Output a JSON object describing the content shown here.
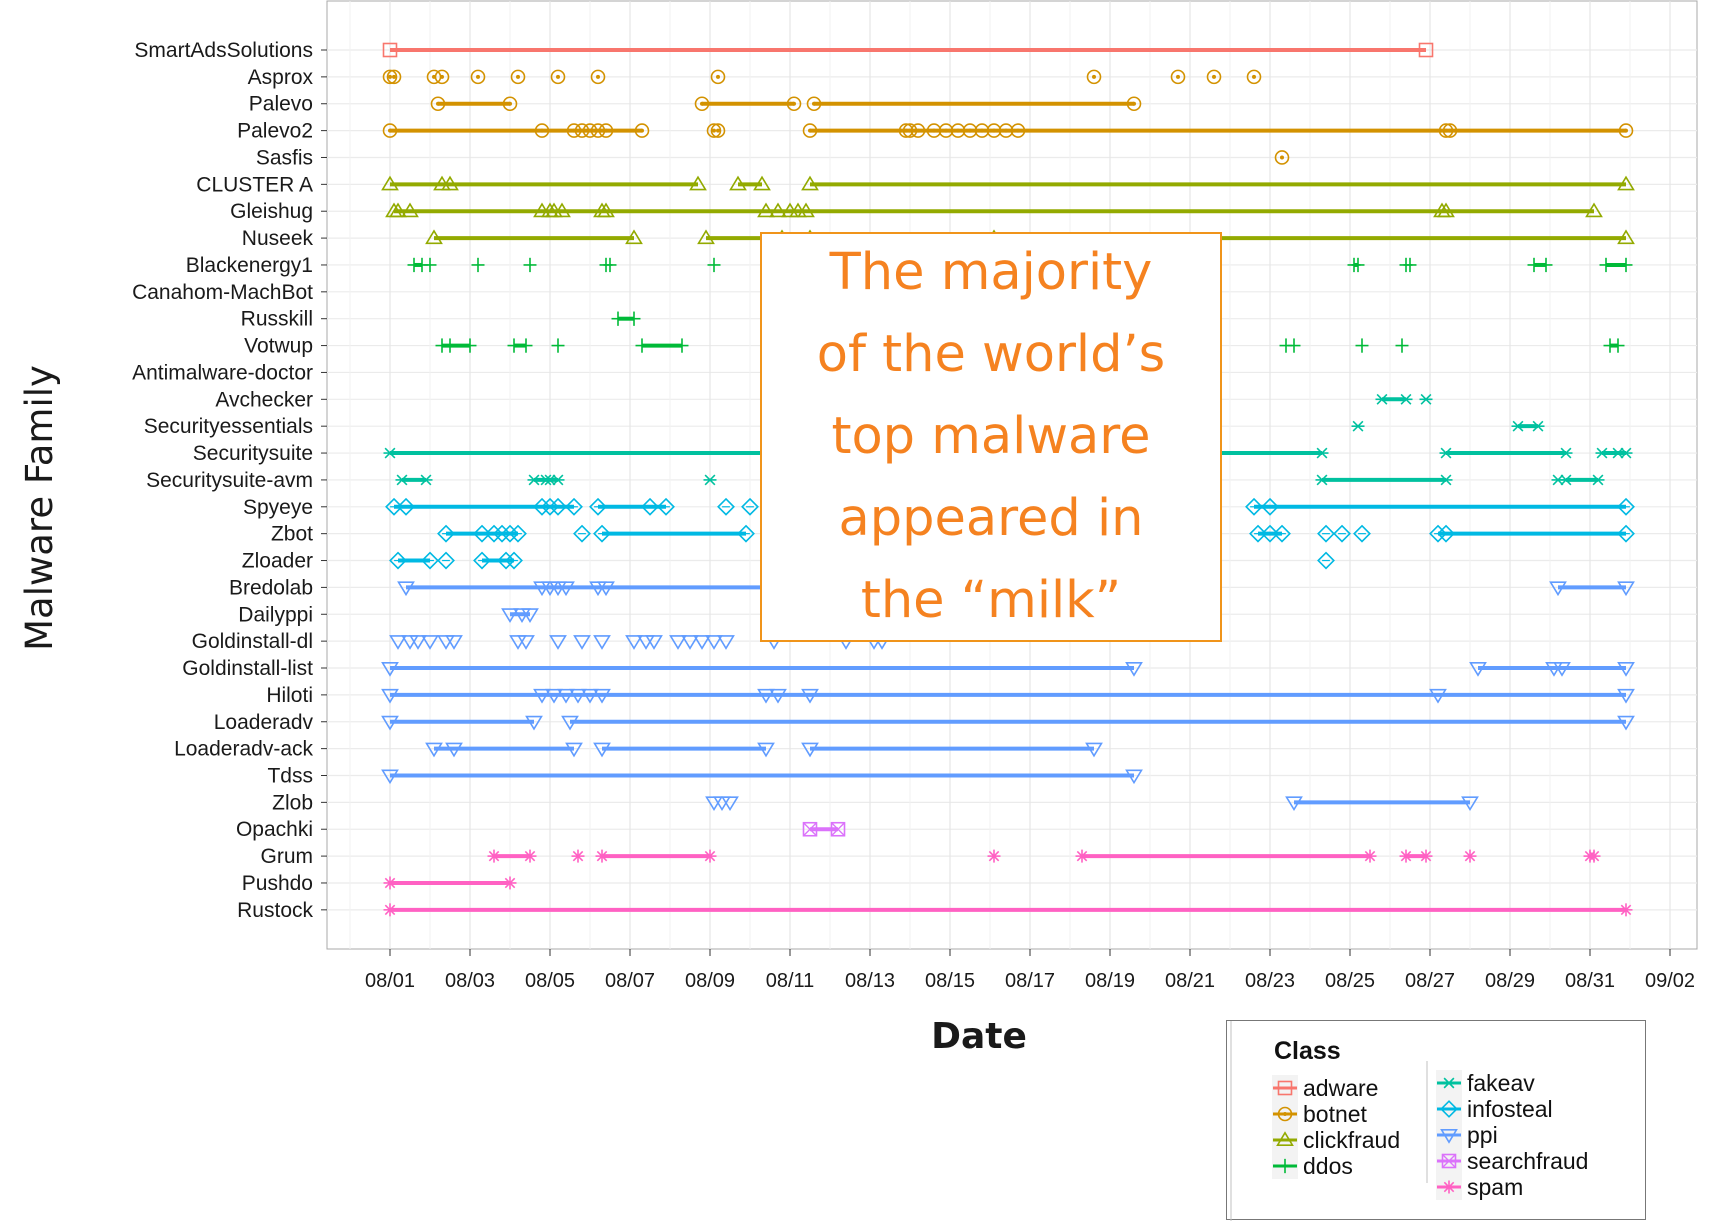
{
  "chart_data": {
    "type": "scatter",
    "xlabel": "Date",
    "ylabel": "Malware Family",
    "x_ticks": [
      "08/01",
      "08/03",
      "08/05",
      "08/07",
      "08/09",
      "08/11",
      "08/13",
      "08/15",
      "08/17",
      "08/19",
      "08/21",
      "08/23",
      "08/25",
      "08/27",
      "08/29",
      "08/31",
      "09/02"
    ],
    "xlim": [
      "07/31",
      "09/02"
    ],
    "grid": true,
    "legend": {
      "title": "Class",
      "placement": "bottom-right",
      "column1": [
        "adware",
        "botnet",
        "clickfraud",
        "ddos"
      ],
      "column2": [
        "fakeav",
        "infosteal",
        "ppi",
        "searchfraud",
        "spam"
      ]
    },
    "class_colors": {
      "adware": "#f8766d",
      "botnet": "#d39200",
      "clickfraud": "#93aa00",
      "ddos": "#00ba38",
      "fakeav": "#00c19f",
      "infosteal": "#00b9e3",
      "ppi": "#619cff",
      "searchfraud": "#db72fb",
      "spam": "#ff61c3"
    },
    "class_markers": {
      "adware": "square",
      "botnet": "circle",
      "clickfraud": "triangle",
      "ddos": "plus",
      "fakeav": "arrow-cross",
      "infosteal": "diamond",
      "ppi": "triangle-down",
      "searchfraud": "boxed-cross",
      "spam": "asterisk"
    },
    "families": [
      {
        "name": "SmartAdsSolutions",
        "class": "adware",
        "points": [
          "08/01",
          "08/26.9"
        ],
        "segments": [
          [
            "08/01",
            "08/26.9"
          ]
        ]
      },
      {
        "name": "Asprox",
        "class": "botnet",
        "points": [
          "08/01",
          "08/01.1",
          "08/02.1",
          "08/02.3",
          "08/03.2",
          "08/04.2",
          "08/05.2",
          "08/06.2",
          "08/09.2",
          "08/18.6",
          "08/20.7",
          "08/21.6",
          "08/22.6"
        ],
        "segments": []
      },
      {
        "name": "Palevo",
        "class": "botnet",
        "points": [
          "08/02.2",
          "08/04",
          "08/08.8",
          "08/11.1",
          "08/11.6",
          "08/19.6"
        ],
        "segments": [
          [
            "08/02.2",
            "08/04"
          ],
          [
            "08/08.8",
            "08/11.1"
          ],
          [
            "08/11.6",
            "08/19.6"
          ]
        ]
      },
      {
        "name": "Palevo2",
        "class": "botnet",
        "points": [
          "08/01",
          "08/04.8",
          "08/05.6",
          "08/05.8",
          "08/06",
          "08/06.2",
          "08/06.4",
          "08/07.3",
          "08/09.1",
          "08/09.2",
          "08/11.5",
          "08/13.9",
          "08/14",
          "08/14.2",
          "08/14.6",
          "08/14.9",
          "08/15.2",
          "08/15.5",
          "08/15.8",
          "08/16.1",
          "08/16.4",
          "08/16.7",
          "08/27.4",
          "08/27.5",
          "08/31.9"
        ],
        "segments": [
          [
            "08/01",
            "08/07.3"
          ],
          [
            "08/11.5",
            "08/31.9"
          ]
        ]
      },
      {
        "name": "Sasfis",
        "class": "botnet",
        "points": [
          "08/23.3"
        ],
        "segments": []
      },
      {
        "name": "CLUSTER A",
        "class": "clickfraud",
        "points": [
          "08/01",
          "08/02.3",
          "08/02.5",
          "08/08.7",
          "08/09.7",
          "08/10.3",
          "08/11.5",
          "08/31.9"
        ],
        "segments": [
          [
            "08/01",
            "08/08.7"
          ],
          [
            "08/09.7",
            "08/10.3"
          ],
          [
            "08/11.5",
            "08/31.9"
          ]
        ]
      },
      {
        "name": "Gleishug",
        "class": "clickfraud",
        "points": [
          "08/01.1",
          "08/01.2",
          "08/01.5",
          "08/04.8",
          "08/05",
          "08/05.1",
          "08/05.3",
          "08/06.3",
          "08/06.4",
          "08/10.4",
          "08/10.7",
          "08/11",
          "08/11.2",
          "08/11.4",
          "08/27.3",
          "08/27.4",
          "08/31.1"
        ],
        "segments": [
          [
            "08/01.1",
            "08/31.1"
          ]
        ]
      },
      {
        "name": "Nuseek",
        "class": "clickfraud",
        "points": [
          "08/02.1",
          "08/07.1",
          "08/08.9",
          "08/10.8",
          "08/11.5",
          "08/16.1",
          "08/31.9"
        ],
        "segments": [
          [
            "08/02.1",
            "08/07.1"
          ],
          [
            "08/08.9",
            "08/31.9"
          ]
        ]
      },
      {
        "name": "Blackenergy1",
        "class": "ddos",
        "points": [
          "08/01.6",
          "08/01.8",
          "08/02",
          "08/03.2",
          "08/04.5",
          "08/06.4",
          "08/06.5",
          "08/09.1",
          "08/25.1",
          "08/25.2",
          "08/26.4",
          "08/26.5",
          "08/29.6",
          "08/29.9",
          "08/31.4",
          "08/31.9"
        ],
        "segments": [
          [
            "08/01.6",
            "08/01.8"
          ],
          [
            "08/25.1",
            "08/25.2"
          ],
          [
            "08/29.6",
            "08/29.9"
          ],
          [
            "08/31.4",
            "08/31.9"
          ]
        ]
      },
      {
        "name": "Canahom-MachBot",
        "class": "ddos",
        "points": [],
        "segments": []
      },
      {
        "name": "Russkill",
        "class": "ddos",
        "points": [
          "08/06.7",
          "08/07.1"
        ],
        "segments": [
          [
            "08/06.7",
            "08/07.1"
          ]
        ]
      },
      {
        "name": "Votwup",
        "class": "ddos",
        "points": [
          "08/02.3",
          "08/02.5",
          "08/03",
          "08/04.1",
          "08/04.4",
          "08/05.2",
          "08/07.3",
          "08/08.3",
          "08/23.4",
          "08/23.6",
          "08/25.3",
          "08/26.3",
          "08/31.5",
          "08/31.7"
        ],
        "segments": [
          [
            "08/02.3",
            "08/03"
          ],
          [
            "08/04.1",
            "08/04.4"
          ],
          [
            "08/07.3",
            "08/08.3"
          ],
          [
            "08/31.5",
            "08/31.7"
          ]
        ]
      },
      {
        "name": "Antimalware-doctor",
        "class": "fakeav",
        "points": [],
        "segments": []
      },
      {
        "name": "Avchecker",
        "class": "fakeav",
        "points": [
          "08/25.8",
          "08/26.4",
          "08/26.9"
        ],
        "segments": [
          [
            "08/25.8",
            "08/26.4"
          ]
        ]
      },
      {
        "name": "Securityessentials",
        "class": "fakeav",
        "points": [
          "08/25.2",
          "08/29.2",
          "08/29.7"
        ],
        "segments": [
          [
            "08/29.2",
            "08/29.7"
          ]
        ]
      },
      {
        "name": "Securitysuite",
        "class": "fakeav",
        "points": [
          "08/01",
          "08/24.3",
          "08/27.4",
          "08/30.4",
          "08/31.3",
          "08/31.7",
          "08/31.9"
        ],
        "segments": [
          [
            "08/01",
            "08/24.3"
          ],
          [
            "08/27.4",
            "08/30.4"
          ],
          [
            "08/31.3",
            "08/31.9"
          ]
        ]
      },
      {
        "name": "Securitysuite-avm",
        "class": "fakeav",
        "points": [
          "08/01.3",
          "08/01.9",
          "08/04.6",
          "08/04.9",
          "08/05",
          "08/05.2",
          "08/09",
          "08/24.3",
          "08/27.4",
          "08/30.2",
          "08/30.4",
          "08/31.2"
        ],
        "segments": [
          [
            "08/01.3",
            "08/01.9"
          ],
          [
            "08/04.6",
            "08/05.2"
          ],
          [
            "08/24.3",
            "08/27.4"
          ],
          [
            "08/30.4",
            "08/31.2"
          ]
        ]
      },
      {
        "name": "Spyeye",
        "class": "infosteal",
        "points": [
          "08/01.1",
          "08/01.4",
          "08/04.8",
          "08/05",
          "08/05.2",
          "08/05.6",
          "08/06.2",
          "08/07.5",
          "08/07.9",
          "08/09.4",
          "08/10",
          "08/22.6",
          "08/23",
          "08/31.9"
        ],
        "segments": [
          [
            "08/01.1",
            "08/05.6"
          ],
          [
            "08/06.2",
            "08/07.9"
          ],
          [
            "08/22.6",
            "08/31.9"
          ]
        ]
      },
      {
        "name": "Zbot",
        "class": "infosteal",
        "points": [
          "08/02.4",
          "08/03.3",
          "08/03.6",
          "08/03.8",
          "08/04",
          "08/04.2",
          "08/05.8",
          "08/06.3",
          "08/09.9",
          "08/22.7",
          "08/23",
          "08/23.3",
          "08/24.4",
          "08/24.8",
          "08/25.3",
          "08/27.2",
          "08/27.4",
          "08/31.9"
        ],
        "segments": [
          [
            "08/02.4",
            "08/04.2"
          ],
          [
            "08/06.3",
            "08/09.9"
          ],
          [
            "08/22.7",
            "08/23.3"
          ],
          [
            "08/27.2",
            "08/31.9"
          ]
        ]
      },
      {
        "name": "Zloader",
        "class": "infosteal",
        "points": [
          "08/01.2",
          "08/02",
          "08/02.4",
          "08/03.3",
          "08/03.9",
          "08/04.1",
          "08/24.4"
        ],
        "segments": [
          [
            "08/01.2",
            "08/02"
          ],
          [
            "08/03.3",
            "08/04.1"
          ]
        ]
      },
      {
        "name": "Bredolab",
        "class": "ppi",
        "points": [
          "08/01.4",
          "08/04.8",
          "08/05",
          "08/05.2",
          "08/05.4",
          "08/06.2",
          "08/06.4",
          "08/30.2",
          "08/31.9"
        ],
        "segments": [
          [
            "08/01.4",
            "08/10.5"
          ],
          [
            "08/30.2",
            "08/31.9"
          ]
        ]
      },
      {
        "name": "Dailyppi",
        "class": "ppi",
        "points": [
          "08/04",
          "08/04.3",
          "08/04.5"
        ],
        "segments": [
          [
            "08/04",
            "08/04.5"
          ]
        ]
      },
      {
        "name": "Goldinstall-dl",
        "class": "ppi",
        "points": [
          "08/01.2",
          "08/01.5",
          "08/01.7",
          "08/02",
          "08/02.4",
          "08/02.6",
          "08/04.2",
          "08/04.4",
          "08/05.2",
          "08/05.8",
          "08/06.3",
          "08/07.1",
          "08/07.4",
          "08/07.6",
          "08/08.2",
          "08/08.5",
          "08/08.8",
          "08/09.1",
          "08/09.4",
          "08/10.6",
          "08/12.4",
          "08/13.1",
          "08/13.3"
        ],
        "segments": []
      },
      {
        "name": "Goldinstall-list",
        "class": "ppi",
        "points": [
          "08/01",
          "08/19.6",
          "08/28.2",
          "08/30.1",
          "08/30.3",
          "08/31.9"
        ],
        "segments": [
          [
            "08/01",
            "08/19.6"
          ],
          [
            "08/28.2",
            "08/31.9"
          ]
        ]
      },
      {
        "name": "Hiloti",
        "class": "ppi",
        "points": [
          "08/01",
          "08/04.8",
          "08/05.1",
          "08/05.4",
          "08/05.7",
          "08/06",
          "08/06.3",
          "08/10.4",
          "08/10.7",
          "08/11.5",
          "08/27.2",
          "08/31.9"
        ],
        "segments": [
          [
            "08/01",
            "08/31.9"
          ]
        ]
      },
      {
        "name": "Loaderadv",
        "class": "ppi",
        "points": [
          "08/01",
          "08/04.6",
          "08/05.5",
          "08/31.9"
        ],
        "segments": [
          [
            "08/01",
            "08/04.6"
          ],
          [
            "08/05.5",
            "08/31.9"
          ]
        ]
      },
      {
        "name": "Loaderadv-ack",
        "class": "ppi",
        "points": [
          "08/02.1",
          "08/02.6",
          "08/05.6",
          "08/06.3",
          "08/10.4",
          "08/11.5",
          "08/18.6"
        ],
        "segments": [
          [
            "08/02.1",
            "08/05.6"
          ],
          [
            "08/06.3",
            "08/10.4"
          ],
          [
            "08/11.5",
            "08/18.6"
          ]
        ]
      },
      {
        "name": "Tdss",
        "class": "ppi",
        "points": [
          "08/01",
          "08/19.6"
        ],
        "segments": [
          [
            "08/01",
            "08/19.6"
          ]
        ]
      },
      {
        "name": "Zlob",
        "class": "ppi",
        "points": [
          "08/09.1",
          "08/09.3",
          "08/09.5",
          "08/23.6",
          "08/28"
        ],
        "segments": [
          [
            "08/23.6",
            "08/28"
          ]
        ]
      },
      {
        "name": "Opachki",
        "class": "searchfraud",
        "points": [
          "08/11.5",
          "08/12.2"
        ],
        "segments": [
          [
            "08/11.5",
            "08/12.2"
          ]
        ]
      },
      {
        "name": "Grum",
        "class": "spam",
        "points": [
          "08/03.6",
          "08/04.5",
          "08/05.7",
          "08/06.3",
          "08/09",
          "08/16.1",
          "08/18.3",
          "08/25.5",
          "08/26.4",
          "08/26.9",
          "08/28",
          "08/31",
          "08/31.1"
        ],
        "segments": [
          [
            "08/03.6",
            "08/04.5"
          ],
          [
            "08/06.3",
            "08/09"
          ],
          [
            "08/18.3",
            "08/25.5"
          ],
          [
            "08/26.4",
            "08/26.9"
          ]
        ]
      },
      {
        "name": "Pushdo",
        "class": "spam",
        "points": [
          "08/01",
          "08/04"
        ],
        "segments": [
          [
            "08/01",
            "08/04"
          ]
        ]
      },
      {
        "name": "Rustock",
        "class": "spam",
        "points": [
          "08/01",
          "08/31.9"
        ],
        "segments": [
          [
            "08/01",
            "08/31.9"
          ]
        ]
      }
    ]
  },
  "annotation": {
    "line1": "The majority",
    "line2": "of the world’s",
    "line3": "top malware",
    "line4": "appeared in",
    "line5": "the “milk”"
  }
}
